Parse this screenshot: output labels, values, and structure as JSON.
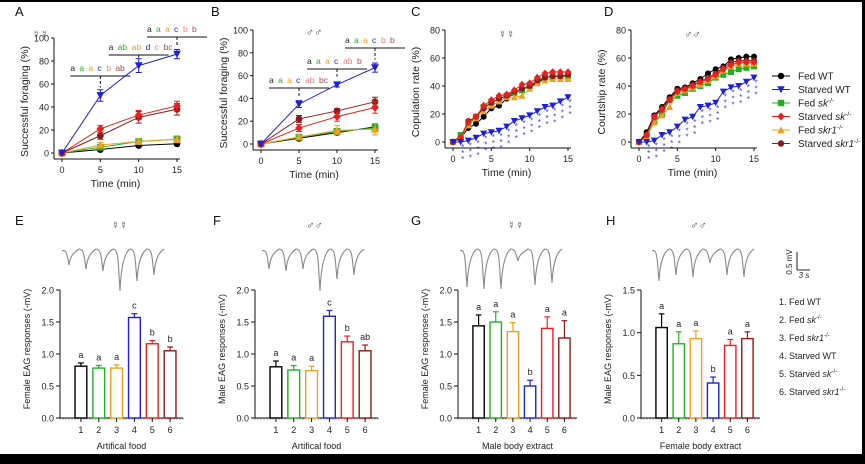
{
  "figure": {
    "groups": [
      {
        "id": 1,
        "name": "Fed WT",
        "short": "Fed WT",
        "color": "#000000",
        "marker": "circle"
      },
      {
        "id": 2,
        "name": "Starved WT",
        "short": "Starved WT",
        "color": "#1f1fd6",
        "marker": "triangle-down"
      },
      {
        "id": 3,
        "name": "Fed sk-/-",
        "short": "Fed ",
        "italic": "sk",
        "sup": "-/-",
        "color": "#22b022",
        "marker": "square"
      },
      {
        "id": 4,
        "name": "Starved sk-/-",
        "short": "Starved ",
        "italic": "sk",
        "sup": "-/-",
        "color": "#e82020",
        "marker": "diamond"
      },
      {
        "id": 5,
        "name": "Fed skr1-/-",
        "short": "Fed ",
        "italic": "skr1",
        "sup": "-/-",
        "color": "#f0a020",
        "marker": "triangle-up"
      },
      {
        "id": 6,
        "name": "Starved skr1-/-",
        "short": "Starved ",
        "italic": "skr1",
        "sup": "-/-",
        "color": "#8b1a1a",
        "marker": "circle"
      }
    ],
    "bar_legend": [
      {
        "num": "1. ",
        "text": "Fed WT",
        "italic": "",
        "sup": ""
      },
      {
        "num": "2. ",
        "text": "Fed ",
        "italic": "sk",
        "sup": "-/-"
      },
      {
        "num": "3. ",
        "text": "Fed ",
        "italic": "skr1",
        "sup": "-/-"
      },
      {
        "num": "4. ",
        "text": "Starved WT",
        "italic": "",
        "sup": ""
      },
      {
        "num": "5. ",
        "text": "Starved ",
        "italic": "sk",
        "sup": "-/-"
      },
      {
        "num": "6. ",
        "text": "Starved ",
        "italic": "skr1",
        "sup": "-/-"
      }
    ],
    "bar_colors": [
      "#000000",
      "#22b022",
      "#f0a020",
      "#1f1fd6",
      "#e82020",
      "#8b1a1a"
    ],
    "scale_bar": {
      "v_label": "0.5 mV",
      "h_label": "3 s"
    }
  },
  "chart_data": [
    {
      "panel": "A",
      "type": "line",
      "sex_symbol": "☿☿",
      "xlabel": "Time (min)",
      "ylabel": "Successful foraging (%)",
      "xlim": [
        0,
        15
      ],
      "ylim": [
        0,
        100
      ],
      "xticks": [
        0,
        5,
        10,
        15
      ],
      "yticks": [
        0,
        20,
        40,
        60,
        80,
        100
      ],
      "x": [
        0,
        5,
        10,
        15
      ],
      "series": [
        {
          "name": "Fed WT",
          "values": [
            0,
            3,
            6.5,
            8
          ],
          "err": [
            0,
            1,
            1,
            1.5
          ]
        },
        {
          "name": "Starved WT",
          "values": [
            0,
            50,
            76,
            86
          ],
          "err": [
            0,
            5,
            6,
            4
          ]
        },
        {
          "name": "Fed sk-/-",
          "values": [
            0,
            5,
            10,
            12
          ],
          "err": [
            0,
            1.5,
            2,
            2
          ]
        },
        {
          "name": "Starved sk-/-",
          "values": [
            0,
            21,
            33,
            41
          ],
          "err": [
            0,
            3,
            4,
            4
          ]
        },
        {
          "name": "Fed skr1-/-",
          "values": [
            0,
            7,
            10,
            12
          ],
          "err": [
            0,
            2,
            2,
            3
          ]
        },
        {
          "name": "Starved skr1-/-",
          "values": [
            0,
            15,
            31,
            38
          ],
          "err": [
            0,
            3,
            5,
            5
          ]
        }
      ],
      "annotations": [
        {
          "x": 5,
          "letters": [
            "a",
            "a",
            "a",
            "c",
            "b",
            "ab"
          ]
        },
        {
          "x": 10,
          "letters": [
            "a",
            "ab",
            "ab",
            "d",
            "c",
            "bc"
          ]
        },
        {
          "x": 15,
          "letters": [
            "a",
            "a",
            "a",
            "c",
            "b",
            "b"
          ]
        }
      ]
    },
    {
      "panel": "B",
      "type": "line",
      "sex_symbol": "♂♂",
      "xlabel": "Time (min)",
      "ylabel": "Successful foraging (%)",
      "xlim": [
        0,
        15
      ],
      "ylim": [
        0,
        100
      ],
      "xticks": [
        0,
        5,
        10,
        15
      ],
      "yticks": [
        0,
        20,
        40,
        60,
        80,
        100
      ],
      "x": [
        0,
        5,
        10,
        15
      ],
      "series": [
        {
          "name": "Fed WT",
          "values": [
            0,
            5,
            10,
            15
          ],
          "err": [
            0,
            2,
            2,
            3
          ]
        },
        {
          "name": "Starved WT",
          "values": [
            0,
            35,
            52,
            67
          ],
          "err": [
            0,
            3,
            2,
            4
          ]
        },
        {
          "name": "Fed sk-/-",
          "values": [
            0,
            6,
            11,
            14
          ],
          "err": [
            0,
            2,
            2,
            3
          ]
        },
        {
          "name": "Starved sk-/-",
          "values": [
            0,
            14,
            24,
            32
          ],
          "err": [
            0,
            3,
            4,
            5
          ]
        },
        {
          "name": "Fed skr1-/-",
          "values": [
            0,
            6,
            12,
            13
          ],
          "err": [
            0,
            2,
            4,
            5
          ]
        },
        {
          "name": "Starved skr1-/-",
          "values": [
            0,
            22,
            29,
            37
          ],
          "err": [
            0,
            3,
            2,
            4
          ]
        }
      ],
      "annotations": [
        {
          "x": 5,
          "letters": [
            "a",
            "a",
            "a",
            "c",
            "ab",
            "bc"
          ]
        },
        {
          "x": 10,
          "letters": [
            "a",
            "a",
            "a",
            "c",
            "ab",
            "b"
          ]
        },
        {
          "x": 15,
          "letters": [
            "a",
            "a",
            "a",
            "c",
            "b",
            "b"
          ]
        }
      ]
    },
    {
      "panel": "C",
      "type": "line",
      "sex_symbol": "☿☿",
      "xlabel": "Time (min)",
      "ylabel": "Copulation rate (%)",
      "xlim": [
        0,
        15
      ],
      "ylim": [
        0,
        80
      ],
      "xticks": [
        0,
        5,
        10,
        15
      ],
      "yticks": [
        0,
        20,
        40,
        60,
        80
      ],
      "x": [
        0,
        1,
        2,
        3,
        4,
        5,
        6,
        7,
        8,
        9,
        10,
        11,
        12,
        13,
        14,
        15
      ],
      "series": [
        {
          "name": "Fed WT",
          "values": [
            0,
            3,
            10,
            13,
            18,
            24,
            26,
            31,
            35,
            37,
            40,
            42,
            46,
            47,
            47,
            47
          ]
        },
        {
          "name": "Starved WT",
          "values": [
            0,
            0,
            1,
            3,
            6,
            7,
            8,
            11,
            15,
            17,
            19,
            22,
            25,
            26,
            29,
            32
          ]
        },
        {
          "name": "Fed sk-/-",
          "values": [
            0,
            5,
            12,
            18,
            25,
            28,
            31,
            33,
            35,
            37,
            40,
            44,
            46,
            47,
            47,
            47
          ]
        },
        {
          "name": "Starved sk-/-",
          "values": [
            0,
            3,
            14,
            18,
            26,
            30,
            33,
            34,
            37,
            41,
            42,
            46,
            49,
            50,
            50,
            50
          ]
        },
        {
          "name": "Fed skr1-/-",
          "values": [
            0,
            3,
            12,
            17,
            22,
            26,
            29,
            32,
            32,
            33,
            38,
            42,
            44,
            45,
            45,
            45
          ]
        },
        {
          "name": "Starved skr1-/-",
          "values": [
            0,
            3,
            15,
            18,
            24,
            28,
            31,
            33,
            36,
            38,
            40,
            44,
            46,
            47,
            47,
            48
          ]
        }
      ],
      "significance_stars": "*** below Starved WT at each time point"
    },
    {
      "panel": "D",
      "type": "line",
      "sex_symbol": "♂♂",
      "xlabel": "Time (min)",
      "ylabel": "Courtship rate (%)",
      "xlim": [
        0,
        15
      ],
      "ylim": [
        0,
        80
      ],
      "xticks": [
        0,
        5,
        10,
        15
      ],
      "yticks": [
        0,
        20,
        40,
        60,
        80
      ],
      "x": [
        0,
        1,
        2,
        3,
        4,
        5,
        6,
        7,
        8,
        9,
        10,
        11,
        12,
        13,
        14,
        15
      ],
      "series": [
        {
          "name": "Fed WT",
          "values": [
            0,
            7,
            19,
            25,
            32,
            38,
            39,
            42,
            45,
            49,
            52,
            54,
            59,
            60,
            61,
            61
          ]
        },
        {
          "name": "Starved WT",
          "values": [
            0,
            0,
            1,
            5,
            7,
            11,
            16,
            18,
            25,
            26,
            28,
            36,
            39,
            40,
            43,
            46
          ]
        },
        {
          "name": "Fed sk-/-",
          "values": [
            0,
            4,
            15,
            20,
            30,
            33,
            35,
            38,
            40,
            42,
            46,
            48,
            50,
            52,
            53,
            54
          ]
        },
        {
          "name": "Starved sk-/-",
          "values": [
            0,
            5,
            18,
            23,
            30,
            36,
            38,
            40,
            43,
            45,
            48,
            52,
            55,
            57,
            57,
            57
          ]
        },
        {
          "name": "Fed skr1-/-",
          "values": [
            0,
            4,
            14,
            19,
            25,
            35,
            37,
            39,
            41,
            44,
            47,
            51,
            54,
            56,
            56,
            56
          ]
        },
        {
          "name": "Starved skr1-/-",
          "values": [
            0,
            5,
            18,
            24,
            31,
            37,
            38,
            41,
            43,
            46,
            49,
            53,
            57,
            58,
            58,
            58
          ]
        }
      ],
      "legend": "right",
      "significance_stars": "*** below Starved WT at each time point"
    },
    {
      "panel": "E",
      "type": "bar",
      "sex_symbol": "☿☿",
      "xlabel": "Artifical food",
      "ylabel": "Female EAG responses (-mV)",
      "categories": [
        "1",
        "2",
        "3",
        "4",
        "5",
        "6"
      ],
      "values": [
        0.81,
        0.78,
        0.78,
        1.57,
        1.16,
        1.05
      ],
      "err": [
        0.05,
        0.04,
        0.05,
        0.06,
        0.05,
        0.06
      ],
      "letters": [
        "a",
        "a",
        "a",
        "c",
        "b",
        "b"
      ],
      "ylim": [
        0,
        2.0
      ],
      "yticks": [
        "0.0",
        "0.5",
        "1.0",
        "1.5",
        "2.0"
      ]
    },
    {
      "panel": "F",
      "type": "bar",
      "sex_symbol": "♂♂",
      "xlabel": "Artifical food",
      "ylabel": "Male EAG responses (-mV)",
      "categories": [
        "1",
        "2",
        "3",
        "4",
        "5",
        "6"
      ],
      "values": [
        0.8,
        0.75,
        0.74,
        1.59,
        1.19,
        1.05
      ],
      "err": [
        0.09,
        0.07,
        0.07,
        0.09,
        0.09,
        0.09
      ],
      "letters": [
        "a",
        "a",
        "a",
        "c",
        "b",
        "ab"
      ],
      "ylim": [
        0,
        2.0
      ],
      "yticks": [
        "0.0",
        "0.5",
        "1.0",
        "1.5",
        "2.0"
      ]
    },
    {
      "panel": "G",
      "type": "bar",
      "sex_symbol": "☿☿",
      "xlabel": "Male body extract",
      "ylabel": "Female EAG responses (-mV)",
      "categories": [
        "1",
        "2",
        "3",
        "4",
        "5",
        "6"
      ],
      "values": [
        1.44,
        1.5,
        1.35,
        0.5,
        1.4,
        1.25
      ],
      "err": [
        0.17,
        0.16,
        0.14,
        0.09,
        0.18,
        0.27
      ],
      "letters": [
        "a",
        "a",
        "a",
        "b",
        "a",
        "a"
      ],
      "ylim": [
        0,
        2.0
      ],
      "yticks": [
        "0.0",
        "0.5",
        "1.0",
        "1.5",
        "2.0"
      ]
    },
    {
      "panel": "H",
      "type": "bar",
      "sex_symbol": "♂♂",
      "xlabel": "Female body extract",
      "ylabel": "Male EAG responses (-mV)",
      "categories": [
        "1",
        "2",
        "3",
        "4",
        "5",
        "6"
      ],
      "values": [
        1.06,
        0.87,
        0.93,
        0.41,
        0.85,
        0.93
      ],
      "err": [
        0.16,
        0.14,
        0.09,
        0.07,
        0.07,
        0.08
      ],
      "letters": [
        "a",
        "a",
        "a",
        "b",
        "a",
        "a"
      ],
      "ylim": [
        0,
        1.5
      ],
      "yticks": [
        "0.0",
        "0.5",
        "1.0",
        "1.5"
      ]
    }
  ]
}
